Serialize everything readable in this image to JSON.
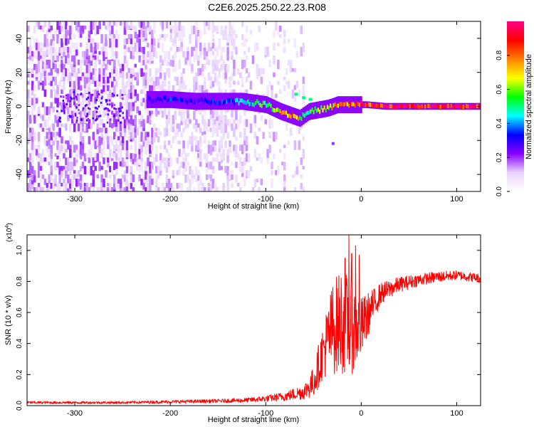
{
  "figure_title": "C2E6.2025.250.22.23.R08",
  "chart_data": [
    {
      "type": "heatmap",
      "title": "C2E6.2025.250.22.23.R08",
      "xlabel": "Height of straight line (km)",
      "ylabel": "Frequency (Hz)",
      "xlim": [
        -350,
        125
      ],
      "ylim": [
        -50,
        50
      ],
      "xticks": [
        -300,
        -200,
        -100,
        0,
        100
      ],
      "yticks": [
        -40,
        -20,
        0,
        20,
        40
      ],
      "colorbar": {
        "label": "Normalized spectral amplitude",
        "range": [
          0.0,
          1.0
        ],
        "ticks": [
          0.0,
          0.2,
          0.4,
          0.6,
          0.8
        ],
        "colormap": [
          "#ffffff",
          "#e8d4ff",
          "#8800ff",
          "#0000ff",
          "#00ffff",
          "#00ff00",
          "#ffff00",
          "#ff8000",
          "#ff0000",
          "#ff0088"
        ]
      },
      "ridge": {
        "x": [
          -225,
          -200,
          -175,
          -150,
          -125,
          -100,
          -85,
          -75,
          -65,
          -55,
          -45,
          -35,
          -25,
          -15,
          -5,
          5,
          25,
          50,
          75,
          100,
          125
        ],
        "freq": [
          4,
          4,
          3,
          3,
          3,
          1,
          -3,
          -5,
          -7,
          -3,
          -2,
          -1,
          1,
          1,
          1,
          1,
          0,
          0,
          0,
          0,
          0
        ],
        "amp": [
          0.3,
          0.35,
          0.3,
          0.35,
          0.45,
          0.6,
          0.75,
          0.85,
          0.7,
          0.55,
          0.6,
          0.7,
          0.8,
          0.85,
          0.9,
          0.95,
          0.98,
          1.0,
          0.98,
          1.0,
          0.98
        ]
      },
      "side_feature": {
        "x": [
          -70,
          -62,
          -55
        ],
        "freq": [
          7,
          5,
          4
        ],
        "amp": 0.5
      },
      "isolated_point": {
        "x": -31,
        "freq": -22,
        "amp": 0.2
      }
    },
    {
      "type": "line",
      "xlabel": "Height of straight line (km)",
      "ylabel": "SNR (10 * v/v)",
      "scale_label": "(x10",
      "scale_exponent": "4",
      "scale_close": ")",
      "xlim": [
        -350,
        125
      ],
      "ylim": [
        0.0,
        1.1
      ],
      "xticks": [
        -300,
        -200,
        -100,
        0,
        100
      ],
      "yticks": [
        0.0,
        0.2,
        0.4,
        0.6,
        0.8,
        1.0
      ],
      "ytick_labels": [
        "0.0",
        "0.2",
        "0.4",
        "0.6",
        "0.8",
        "1.0"
      ],
      "color": "#ff0000",
      "envelope_x": [
        -350,
        -300,
        -250,
        -200,
        -150,
        -120,
        -100,
        -80,
        -60,
        -50,
        -40,
        -30,
        -20,
        -10,
        0,
        10,
        20,
        40,
        60,
        80,
        100,
        125
      ],
      "envelope_y": [
        0.02,
        0.02,
        0.02,
        0.025,
        0.03,
        0.035,
        0.045,
        0.06,
        0.09,
        0.15,
        0.35,
        0.5,
        0.55,
        0.5,
        0.5,
        0.62,
        0.72,
        0.78,
        0.81,
        0.83,
        0.84,
        0.82
      ],
      "noise_amp": [
        0.008,
        0.008,
        0.008,
        0.01,
        0.012,
        0.015,
        0.02,
        0.03,
        0.05,
        0.1,
        0.18,
        0.3,
        0.35,
        0.3,
        0.2,
        0.12,
        0.07,
        0.05,
        0.04,
        0.035,
        0.03,
        0.03
      ],
      "spikes": [
        {
          "x": -13,
          "y": 1.1
        },
        {
          "x": -10,
          "y": 0.98
        },
        {
          "x": -6,
          "y": 1.03
        },
        {
          "x": -17,
          "y": 0.95
        },
        {
          "x": -2,
          "y": 0.97
        }
      ]
    }
  ]
}
